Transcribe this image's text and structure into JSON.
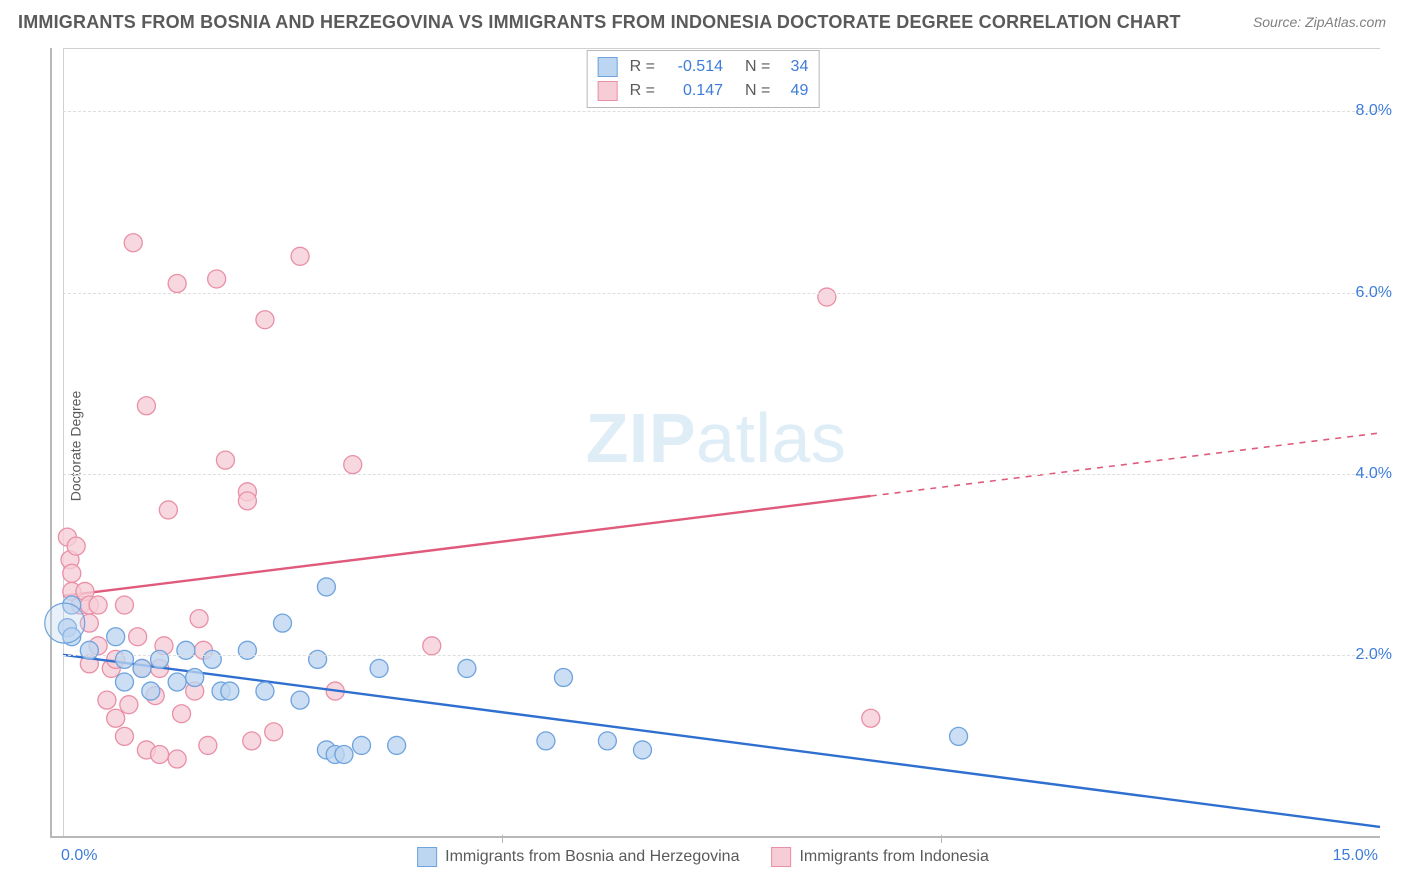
{
  "title": "IMMIGRANTS FROM BOSNIA AND HERZEGOVINA VS IMMIGRANTS FROM INDONESIA DOCTORATE DEGREE CORRELATION CHART",
  "source": "Source: ZipAtlas.com",
  "watermark_bold": "ZIP",
  "watermark_rest": "atlas",
  "y_axis_label": "Doctorate Degree",
  "chart": {
    "type": "scatter",
    "xlim": [
      0,
      15
    ],
    "ylim": [
      0,
      8.7
    ],
    "x_ticks": [
      0,
      5,
      10,
      15
    ],
    "x_tick_labels": [
      "0.0%",
      "",
      "",
      "15.0%"
    ],
    "y_ticks": [
      2,
      4,
      6,
      8
    ],
    "y_tick_labels": [
      "2.0%",
      "4.0%",
      "6.0%",
      "8.0%"
    ],
    "grid_color": "#dedede",
    "background": "#ffffff",
    "series": [
      {
        "name": "Immigrants from Bosnia and Herzegovina",
        "color_fill": "#bcd5f0",
        "color_stroke": "#6fa3dd",
        "line_color": "#2f6fd0",
        "marker_r": 9,
        "R": "-0.514",
        "N": "34",
        "trend": {
          "x1": 0,
          "y1": 2.0,
          "x2": 15,
          "y2": 0.1,
          "dash_from_x": 15
        },
        "points": [
          [
            0.05,
            2.3
          ],
          [
            0.1,
            2.2
          ],
          [
            0.1,
            2.55
          ],
          [
            0.3,
            2.05
          ],
          [
            0.6,
            2.2
          ],
          [
            0.7,
            1.95
          ],
          [
            0.7,
            1.7
          ],
          [
            0.9,
            1.85
          ],
          [
            1.0,
            1.6
          ],
          [
            1.1,
            1.95
          ],
          [
            1.3,
            1.7
          ],
          [
            1.4,
            2.05
          ],
          [
            1.5,
            1.75
          ],
          [
            1.7,
            1.95
          ],
          [
            1.8,
            1.6
          ],
          [
            1.9,
            1.6
          ],
          [
            2.1,
            2.05
          ],
          [
            2.3,
            1.6
          ],
          [
            2.5,
            2.35
          ],
          [
            2.7,
            1.5
          ],
          [
            2.9,
            1.95
          ],
          [
            3.0,
            2.75
          ],
          [
            3.0,
            0.95
          ],
          [
            3.1,
            0.9
          ],
          [
            3.2,
            0.9
          ],
          [
            3.4,
            1.0
          ],
          [
            3.6,
            1.85
          ],
          [
            3.8,
            1.0
          ],
          [
            4.6,
            1.85
          ],
          [
            5.5,
            1.05
          ],
          [
            5.7,
            1.75
          ],
          [
            6.2,
            1.05
          ],
          [
            6.6,
            0.95
          ],
          [
            10.2,
            1.1
          ]
        ]
      },
      {
        "name": "Immigrants from Indonesia",
        "color_fill": "#f6cdd7",
        "color_stroke": "#e98fa6",
        "line_color": "#e05a7c",
        "marker_r": 9,
        "R": "0.147",
        "N": "49",
        "trend": {
          "x1": 0,
          "y1": 2.65,
          "x2": 15,
          "y2": 4.45,
          "dash_from_x": 9.2
        },
        "points": [
          [
            0.05,
            3.3
          ],
          [
            0.08,
            3.05
          ],
          [
            0.1,
            2.7
          ],
          [
            0.1,
            2.9
          ],
          [
            0.15,
            3.2
          ],
          [
            0.2,
            2.55
          ],
          [
            0.25,
            2.7
          ],
          [
            0.3,
            2.55
          ],
          [
            0.3,
            2.35
          ],
          [
            0.3,
            1.9
          ],
          [
            0.4,
            2.55
          ],
          [
            0.4,
            2.1
          ],
          [
            0.5,
            1.5
          ],
          [
            0.55,
            1.85
          ],
          [
            0.6,
            1.3
          ],
          [
            0.6,
            1.95
          ],
          [
            0.7,
            2.55
          ],
          [
            0.7,
            1.1
          ],
          [
            0.75,
            1.45
          ],
          [
            0.8,
            6.55
          ],
          [
            0.85,
            2.2
          ],
          [
            0.9,
            1.85
          ],
          [
            0.95,
            4.75
          ],
          [
            0.95,
            0.95
          ],
          [
            1.05,
            1.55
          ],
          [
            1.1,
            0.9
          ],
          [
            1.1,
            1.85
          ],
          [
            1.15,
            2.1
          ],
          [
            1.2,
            3.6
          ],
          [
            1.3,
            6.1
          ],
          [
            1.3,
            0.85
          ],
          [
            1.35,
            1.35
          ],
          [
            1.5,
            1.6
          ],
          [
            1.55,
            2.4
          ],
          [
            1.6,
            2.05
          ],
          [
            1.65,
            1.0
          ],
          [
            1.75,
            6.15
          ],
          [
            1.85,
            4.15
          ],
          [
            2.1,
            3.8
          ],
          [
            2.1,
            3.7
          ],
          [
            2.15,
            1.05
          ],
          [
            2.3,
            5.7
          ],
          [
            2.4,
            1.15
          ],
          [
            2.7,
            6.4
          ],
          [
            3.1,
            1.6
          ],
          [
            3.3,
            4.1
          ],
          [
            4.2,
            2.1
          ],
          [
            8.7,
            5.95
          ],
          [
            9.2,
            1.3
          ]
        ]
      }
    ]
  },
  "legend_stats_label_r": "R =",
  "legend_stats_label_n": "N =",
  "bottom_legend_a": "Immigrants from Bosnia and Herzegovina",
  "bottom_legend_b": "Immigrants from Indonesia"
}
